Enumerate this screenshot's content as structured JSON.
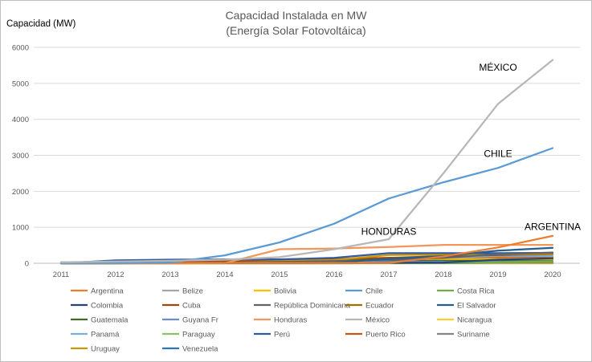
{
  "chart_data": {
    "type": "line",
    "title_line1": "Capacidad Instalada en MW",
    "title_line2": "(Energía Solar Fotovoltáica)",
    "ylabel": "Capacidad (MW)",
    "xlabel": "",
    "ylim": [
      0,
      6000
    ],
    "y_ticks": [
      0,
      1000,
      2000,
      3000,
      4000,
      5000,
      6000
    ],
    "x": [
      "2011",
      "2012",
      "2013",
      "2014",
      "2015",
      "2016",
      "2017",
      "2018",
      "2019",
      "2020"
    ],
    "grid": "horizontal",
    "legend_placement": "bottom",
    "annotations": [
      {
        "text": "MÉXICO",
        "x_index": 8,
        "y": 5350
      },
      {
        "text": "CHILE",
        "x_index": 8,
        "y": 2950
      },
      {
        "text": "HONDURAS",
        "x_index": 6,
        "y": 790
      },
      {
        "text": "ARGENTINA",
        "x_index": 9,
        "y": 930
      }
    ],
    "series": [
      {
        "name": "Argentina",
        "color": "#ED7D31",
        "values": [
          5,
          8,
          8,
          8,
          8,
          9,
          9,
          190,
          440,
          760
        ]
      },
      {
        "name": "Belize",
        "color": "#A5A5A5",
        "values": [
          0,
          0,
          0,
          0,
          0,
          0,
          0,
          1,
          1,
          1
        ]
      },
      {
        "name": "Bolivia",
        "color": "#FFC000",
        "values": [
          0,
          0,
          0,
          5,
          5,
          5,
          120,
          120,
          120,
          120
        ]
      },
      {
        "name": "Chile",
        "color": "#5B9BD5",
        "values": [
          5,
          10,
          20,
          220,
          580,
          1100,
          1800,
          2250,
          2650,
          3200
        ]
      },
      {
        "name": "Costa Rica",
        "color": "#70AD47",
        "values": [
          0,
          0,
          0,
          1,
          1,
          1,
          5,
          10,
          30,
          50
        ]
      },
      {
        "name": "Colombia",
        "color": "#264478",
        "values": [
          5,
          5,
          5,
          5,
          5,
          10,
          12,
          20,
          100,
          140
        ]
      },
      {
        "name": "Cuba",
        "color": "#9E480E",
        "values": [
          5,
          10,
          20,
          40,
          60,
          100,
          150,
          200,
          230,
          250
        ]
      },
      {
        "name": "República Dominicana",
        "color": "#636363",
        "values": [
          0,
          5,
          10,
          20,
          40,
          60,
          100,
          150,
          250,
          300
        ]
      },
      {
        "name": "Ecuador",
        "color": "#997300",
        "values": [
          0,
          0,
          20,
          26,
          26,
          26,
          26,
          27,
          28,
          28
        ]
      },
      {
        "name": "El Salvador",
        "color": "#255E91",
        "values": [
          0,
          0,
          5,
          5,
          10,
          20,
          120,
          200,
          350,
          430
        ]
      },
      {
        "name": "Guatemala",
        "color": "#43682B",
        "values": [
          0,
          0,
          5,
          5,
          80,
          85,
          90,
          90,
          90,
          100
        ]
      },
      {
        "name": "Guyana Fr",
        "color": "#698ED0",
        "values": [
          30,
          35,
          40,
          45,
          45,
          45,
          45,
          45,
          45,
          45
        ]
      },
      {
        "name": "Honduras",
        "color": "#F1975A",
        "values": [
          0,
          0,
          0,
          5,
          390,
          410,
          450,
          510,
          510,
          510
        ]
      },
      {
        "name": "México",
        "color": "#B7B7B7",
        "values": [
          30,
          50,
          70,
          100,
          170,
          390,
          670,
          2500,
          4430,
          5650
        ]
      },
      {
        "name": "Nicaragua",
        "color": "#FFCD33",
        "values": [
          0,
          0,
          0,
          1,
          1,
          1,
          2,
          14,
          14,
          14
        ]
      },
      {
        "name": "Panamá",
        "color": "#7CAFDD",
        "values": [
          0,
          0,
          0,
          5,
          40,
          50,
          100,
          150,
          200,
          200
        ]
      },
      {
        "name": "Paraguay",
        "color": "#8CC168",
        "values": [
          0,
          0,
          0,
          0,
          0,
          0,
          0,
          0,
          0,
          1
        ]
      },
      {
        "name": "Perú",
        "color": "#335AA1",
        "values": [
          0,
          80,
          100,
          110,
          110,
          150,
          280,
          280,
          280,
          290
        ]
      },
      {
        "name": "Puerto Rico",
        "color": "#C55A11",
        "values": [
          10,
          20,
          40,
          60,
          90,
          120,
          150,
          160,
          170,
          180
        ]
      },
      {
        "name": "Suriname",
        "color": "#848484",
        "values": [
          0,
          0,
          0,
          1,
          1,
          3,
          5,
          5,
          5,
          6
        ]
      },
      {
        "name": "Uruguay",
        "color": "#CC9A00",
        "values": [
          0,
          0,
          0,
          4,
          60,
          90,
          230,
          240,
          250,
          260
        ]
      },
      {
        "name": "Venezuela",
        "color": "#2E75B6",
        "values": [
          0,
          0,
          1,
          2,
          3,
          4,
          4,
          5,
          5,
          5
        ]
      }
    ]
  }
}
